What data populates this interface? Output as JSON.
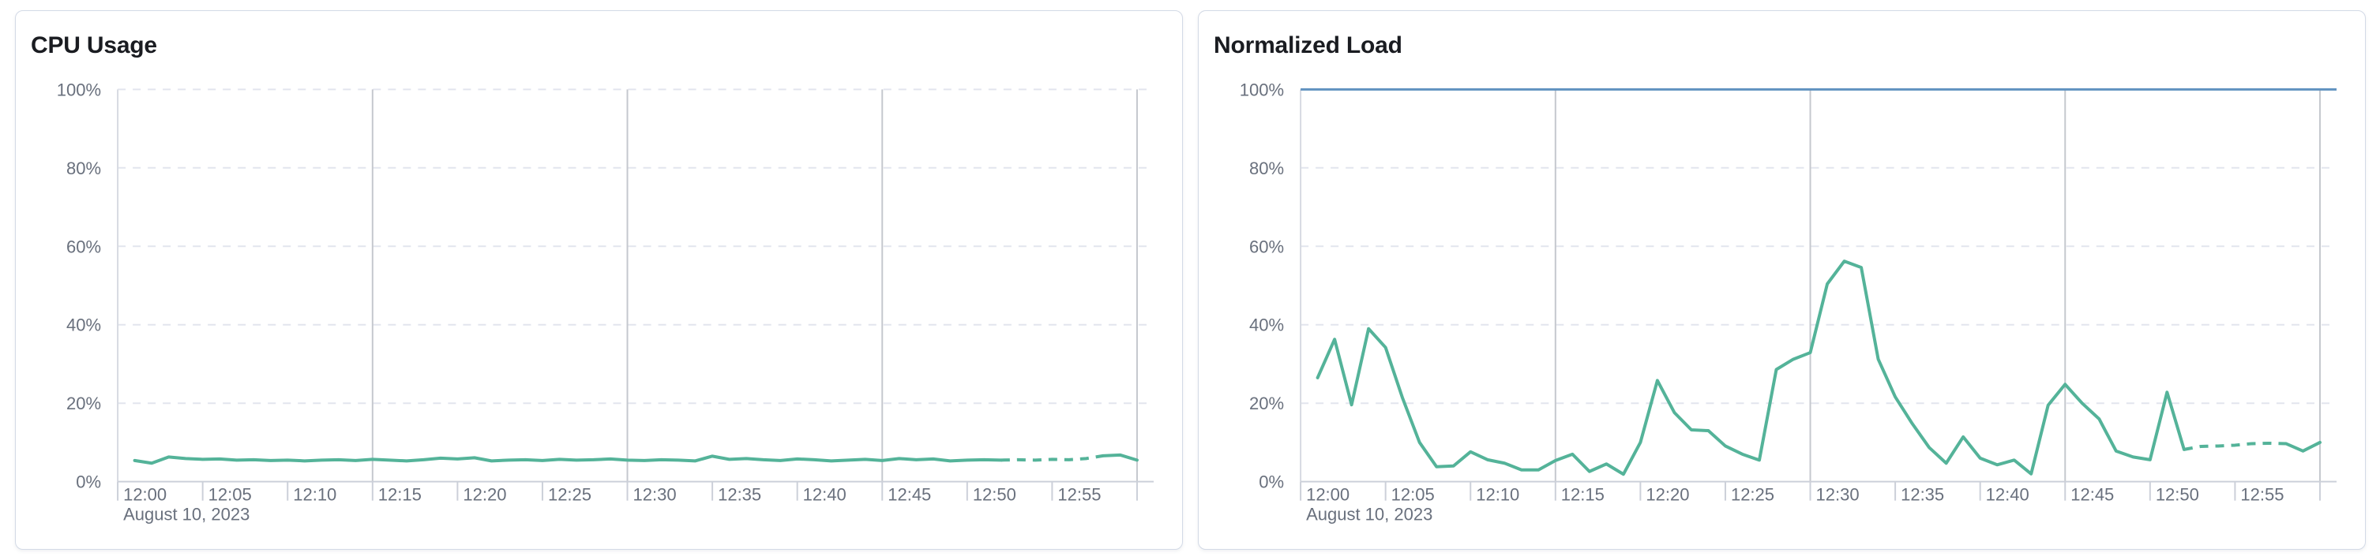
{
  "page": {
    "background": "#ffffff",
    "kind": "metrics-dashboard"
  },
  "theme": {
    "panel_background": "#ffffff",
    "panel_border": "#d3dae6",
    "title_color": "#1a1c21",
    "axis_label_color": "#69707d",
    "grid_dashed_color": "#e2e5ee",
    "grid_major_vertical_color": "#c5c8ce",
    "axis_line_color": "#ccd0d9",
    "series_green": "#54b399",
    "reference_blue": "#6092c0"
  },
  "chart_data": [
    {
      "type": "line",
      "title": "CPU Usage",
      "xlabel": "",
      "ylabel": "",
      "ylim": [
        0,
        100
      ],
      "y_tick_labels": [
        "0%",
        "20%",
        "40%",
        "60%",
        "80%",
        "100%"
      ],
      "x_tick_labels": [
        "12:00",
        "12:05",
        "12:10",
        "12:15",
        "12:20",
        "12:25",
        "12:30",
        "12:35",
        "12:40",
        "12:45",
        "12:50",
        "12:55"
      ],
      "x_date_label": "August 10, 2023",
      "x_domain": [
        "12:00",
        "13:01"
      ],
      "x_start": "12:01",
      "x_interval_minutes": 1,
      "major_vertical_gridlines": [
        "12:15",
        "12:30",
        "12:45",
        "13:00"
      ],
      "grid": "dashed-horizontal",
      "legend_position": "none",
      "dashed_segment": {
        "from": "12:52",
        "to": "12:58"
      },
      "series": [
        {
          "name": "cpu-usage",
          "color": "#54b399",
          "unit": "%",
          "values": [
            5.4,
            4.7,
            6.3,
            5.9,
            5.7,
            5.8,
            5.5,
            5.6,
            5.4,
            5.5,
            5.3,
            5.5,
            5.6,
            5.4,
            5.7,
            5.5,
            5.3,
            5.6,
            6.0,
            5.8,
            6.1,
            5.3,
            5.5,
            5.6,
            5.4,
            5.7,
            5.5,
            5.6,
            5.8,
            5.5,
            5.4,
            5.6,
            5.5,
            5.3,
            6.5,
            5.7,
            5.9,
            5.6,
            5.4,
            5.8,
            5.6,
            5.3,
            5.5,
            5.7,
            5.4,
            5.9,
            5.6,
            5.8,
            5.3,
            5.5,
            5.6,
            5.5,
            5.6,
            5.5,
            5.7,
            5.6,
            5.9,
            6.6,
            6.8,
            5.5
          ]
        }
      ]
    },
    {
      "type": "line",
      "title": "Normalized Load",
      "xlabel": "",
      "ylabel": "",
      "ylim": [
        0,
        100
      ],
      "y_tick_labels": [
        "0%",
        "20%",
        "40%",
        "60%",
        "80%",
        "100%"
      ],
      "x_tick_labels": [
        "12:00",
        "12:05",
        "12:10",
        "12:15",
        "12:20",
        "12:25",
        "12:30",
        "12:35",
        "12:40",
        "12:45",
        "12:50",
        "12:55"
      ],
      "x_date_label": "August 10, 2023",
      "x_domain": [
        "12:00",
        "13:01"
      ],
      "x_start": "12:01",
      "x_interval_minutes": 1,
      "major_vertical_gridlines": [
        "12:15",
        "12:30",
        "12:45",
        "13:00"
      ],
      "grid": "dashed-horizontal",
      "legend_position": "none",
      "reference_line": {
        "value": 100,
        "label": "100%",
        "color": "#6092c0"
      },
      "dashed_segment": {
        "from": "12:52",
        "to": "12:58"
      },
      "series": [
        {
          "name": "normalized-load",
          "color": "#54b399",
          "unit": "%",
          "values": [
            26.5,
            36.3,
            19.6,
            39.0,
            34.2,
            21.3,
            10.0,
            3.8,
            4.0,
            7.6,
            5.6,
            4.7,
            3.0,
            3.0,
            5.4,
            7.0,
            2.6,
            4.5,
            1.9,
            10.0,
            25.8,
            17.6,
            13.2,
            13.0,
            9.1,
            7.0,
            5.5,
            28.6,
            31.2,
            32.9,
            50.4,
            56.2,
            54.6,
            31.2,
            21.6,
            14.8,
            8.7,
            4.7,
            11.4,
            6.0,
            4.3,
            5.5,
            2.0,
            19.5,
            24.8,
            20.0,
            16.0,
            7.8,
            6.3,
            5.6,
            22.8,
            8.2,
            9.0,
            9.1,
            9.3,
            9.7,
            9.8,
            9.7,
            7.8,
            10.0
          ]
        }
      ]
    }
  ]
}
